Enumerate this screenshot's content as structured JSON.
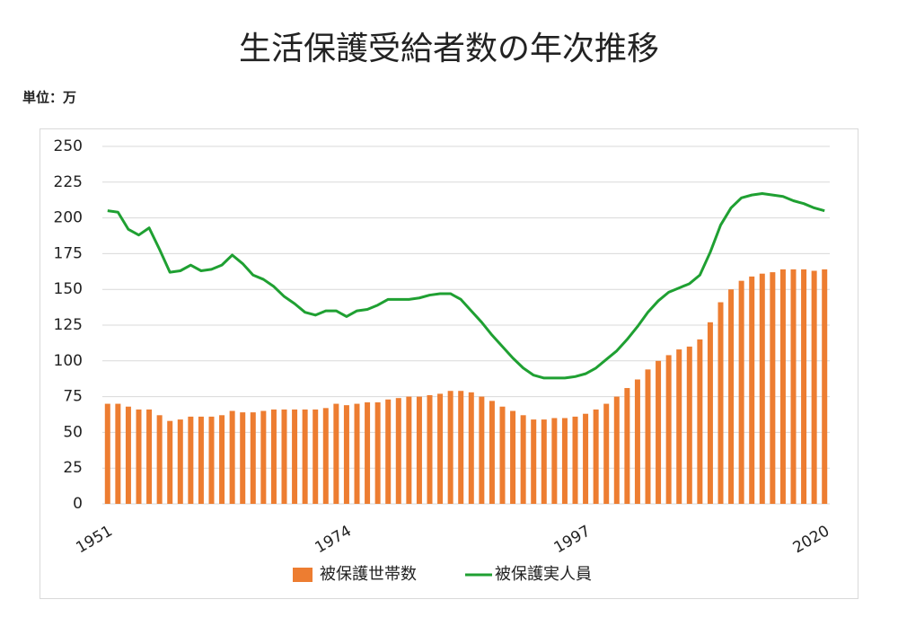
{
  "chart_data": {
    "type": "bar",
    "title": "生活保護受給者数の年次推移",
    "unit_label": "単位：万",
    "categories": [
      "1951",
      null,
      null,
      null,
      null,
      null,
      null,
      null,
      null,
      null,
      null,
      null,
      null,
      null,
      null,
      null,
      null,
      null,
      null,
      null,
      null,
      null,
      null,
      "1974",
      null,
      null,
      null,
      null,
      null,
      null,
      null,
      null,
      null,
      null,
      null,
      null,
      null,
      null,
      null,
      null,
      null,
      null,
      null,
      null,
      null,
      null,
      "1997",
      null,
      null,
      null,
      null,
      null,
      null,
      null,
      null,
      null,
      null,
      null,
      null,
      null,
      null,
      null,
      null,
      null,
      null,
      null,
      null,
      null,
      null,
      "2020"
    ],
    "series": [
      {
        "name": "被保護世帯数",
        "type": "bar",
        "color": "#ed7d31",
        "values": [
          70,
          70,
          68,
          66,
          66,
          62,
          58,
          59,
          61,
          61,
          61,
          62,
          65,
          64,
          64,
          65,
          66,
          66,
          66,
          66,
          66,
          67,
          70,
          69,
          70,
          71,
          71,
          73,
          74,
          75,
          75,
          76,
          77,
          79,
          79,
          78,
          75,
          72,
          68,
          65,
          62,
          59,
          59,
          60,
          60,
          61,
          63,
          66,
          70,
          75,
          81,
          87,
          94,
          100,
          104,
          108,
          110,
          115,
          127,
          141,
          150,
          156,
          159,
          161,
          162,
          164,
          164,
          164,
          163,
          164
        ]
      },
      {
        "name": "被保護実人員",
        "type": "line",
        "color": "#1fa032",
        "values": [
          205,
          204,
          192,
          188,
          193,
          178,
          162,
          163,
          167,
          163,
          164,
          167,
          174,
          168,
          160,
          157,
          152,
          145,
          140,
          134,
          132,
          135,
          135,
          131,
          135,
          136,
          139,
          143,
          143,
          143,
          144,
          146,
          147,
          147,
          143,
          135,
          127,
          118,
          110,
          102,
          95,
          90,
          88,
          88,
          88,
          89,
          91,
          95,
          101,
          107,
          115,
          124,
          134,
          142,
          148,
          151,
          154,
          160,
          176,
          195,
          207,
          214,
          216,
          217,
          216,
          215,
          212,
          210,
          207,
          205
        ]
      }
    ],
    "ylim": [
      0,
      250
    ],
    "yticks": [
      0,
      25,
      50,
      75,
      100,
      125,
      150,
      175,
      200,
      225,
      250
    ],
    "grid": true,
    "legend": "bottom"
  }
}
